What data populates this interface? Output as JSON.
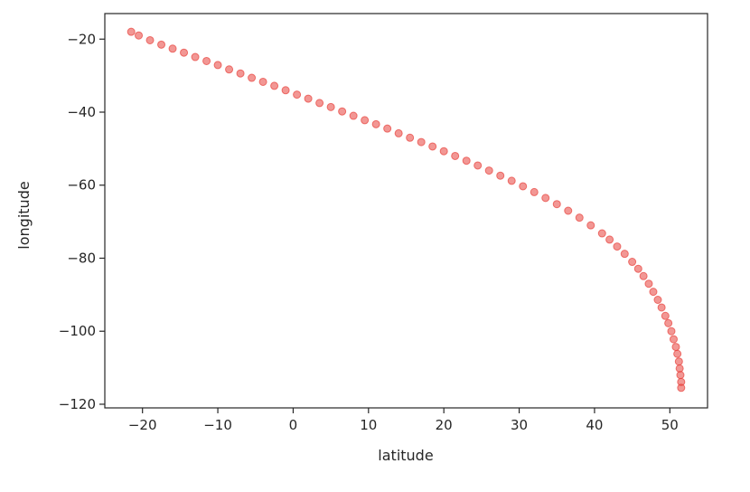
{
  "chart_data": {
    "type": "scatter",
    "title": "",
    "xlabel": "latitude",
    "ylabel": "longitude",
    "xlim": [
      -25,
      55
    ],
    "ylim": [
      -121,
      -13
    ],
    "xticks": [
      -20,
      -10,
      0,
      10,
      20,
      30,
      40,
      50
    ],
    "xtick_labels": [
      "−20",
      "−10",
      "0",
      "10",
      "20",
      "30",
      "40",
      "50"
    ],
    "yticks": [
      -20,
      -40,
      -60,
      -80,
      -100,
      -120
    ],
    "ytick_labels": [
      "−20",
      "−40",
      "−60",
      "−80",
      "−100",
      "−120"
    ],
    "grid": false,
    "legend": "none",
    "marker_color": "#e8413c",
    "series": [
      {
        "x": [
          -21.5,
          -20.5,
          -19.0,
          -17.5,
          -16.0,
          -14.5,
          -13.0,
          -11.5,
          -10.0,
          -8.5,
          -7.0,
          -5.5,
          -4.0,
          -2.5,
          -1.0,
          0.5,
          2.0,
          3.5,
          5.0,
          6.5,
          8.0,
          9.5,
          11.0,
          12.5,
          14.0,
          15.5,
          17.0,
          18.5,
          20.0,
          21.5,
          23.0,
          24.5,
          26.0,
          27.5,
          29.0,
          30.5,
          32.0,
          33.5,
          35.0,
          36.5,
          38.0,
          39.5,
          41.0,
          42.0,
          43.0,
          44.0,
          45.0,
          45.8,
          46.5,
          47.2,
          47.8,
          48.4,
          48.9,
          49.4,
          49.8,
          50.2,
          50.5,
          50.8,
          51.0,
          51.2,
          51.3,
          51.4,
          51.5,
          51.5
        ],
        "y": [
          -18.0,
          -19.0,
          -20.3,
          -21.5,
          -22.6,
          -23.7,
          -24.9,
          -26.0,
          -27.1,
          -28.3,
          -29.4,
          -30.6,
          -31.7,
          -32.8,
          -34.0,
          -35.2,
          -36.3,
          -37.5,
          -38.6,
          -39.8,
          -41.0,
          -42.2,
          -43.3,
          -44.5,
          -45.8,
          -47.0,
          -48.2,
          -49.4,
          -50.7,
          -52.0,
          -53.3,
          -54.6,
          -56.0,
          -57.4,
          -58.8,
          -60.3,
          -61.9,
          -63.5,
          -65.2,
          -67.0,
          -68.9,
          -71.0,
          -73.2,
          -74.9,
          -76.8,
          -78.8,
          -81.0,
          -82.9,
          -84.9,
          -87.0,
          -89.2,
          -91.4,
          -93.5,
          -95.8,
          -97.8,
          -100.0,
          -102.2,
          -104.3,
          -106.2,
          -108.3,
          -110.2,
          -112.0,
          -113.9,
          -115.5
        ]
      }
    ]
  }
}
